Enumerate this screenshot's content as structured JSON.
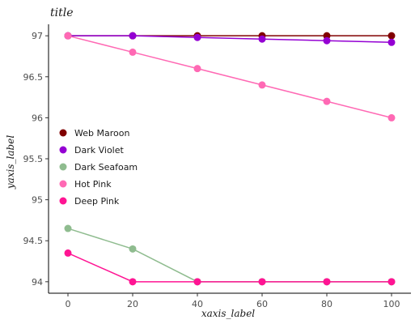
{
  "chart_data": {
    "type": "line",
    "title": "title",
    "xlabel": "xaxis_label",
    "ylabel": "yaxis_label",
    "x": [
      0,
      20,
      40,
      60,
      80,
      100
    ],
    "xlim": [
      -6,
      106
    ],
    "ylim": [
      93.86,
      97.14
    ],
    "xticks": [
      0,
      20,
      40,
      60,
      80,
      100
    ],
    "yticks": [
      94,
      94.5,
      95,
      95.5,
      96,
      96.5,
      97
    ],
    "grid": false,
    "legend_position": "center-right",
    "series": [
      {
        "name": "Web Maroon",
        "color": "#800000",
        "values": [
          97.0,
          97.0,
          97.0,
          97.0,
          97.0,
          97.0
        ]
      },
      {
        "name": "Dark Violet",
        "color": "#9400d3",
        "values": [
          97.0,
          97.0,
          96.98,
          96.96,
          96.94,
          96.92
        ]
      },
      {
        "name": "Dark Seafoam",
        "color": "#8fbc8f",
        "values": [
          94.65,
          94.4,
          94.0,
          94.0,
          94.0,
          94.0
        ]
      },
      {
        "name": "Hot Pink",
        "color": "#ff69b4",
        "values": [
          97.0,
          96.8,
          96.6,
          96.4,
          96.2,
          96.0
        ]
      },
      {
        "name": "Deep Pink",
        "color": "#ff1493",
        "values": [
          94.35,
          94.0,
          94.0,
          94.0,
          94.0,
          94.0
        ]
      }
    ]
  }
}
